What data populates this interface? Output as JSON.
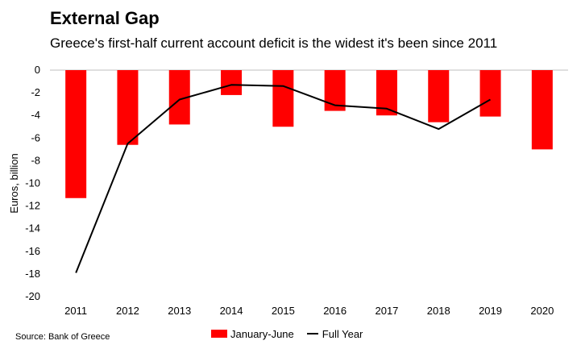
{
  "colors": {
    "bar": "#ff0000",
    "line": "#000000",
    "grid": "#d9d9d9",
    "axis": "#bfbfbf"
  },
  "source": "Source: Bank of Greece",
  "chart_data": {
    "type": "bar",
    "title": "External Gap",
    "subtitle": "Greece's first-half current account deficit is the widest it's been since 2011",
    "xlabel": "",
    "ylabel": "Euros, billion",
    "ylim": [
      -20,
      0
    ],
    "yticks": [
      0,
      -2,
      -4,
      -6,
      -8,
      -10,
      -12,
      -14,
      -16,
      -18,
      -20
    ],
    "categories": [
      "2011",
      "2012",
      "2013",
      "2014",
      "2015",
      "2016",
      "2017",
      "2018",
      "2019",
      "2020"
    ],
    "grid": false,
    "legend_position": "bottom",
    "series": [
      {
        "name": "January-June",
        "type": "bar",
        "color": "#ff0000",
        "values": [
          -11.3,
          -6.6,
          -4.8,
          -2.2,
          -5.0,
          -3.6,
          -4.0,
          -4.6,
          -4.1,
          -7.0
        ]
      },
      {
        "name": "Full Year",
        "type": "line",
        "color": "#000000",
        "values": [
          -17.9,
          -6.5,
          -2.6,
          -1.3,
          -1.4,
          -3.1,
          -3.4,
          -5.2,
          -2.6,
          null
        ]
      }
    ]
  }
}
